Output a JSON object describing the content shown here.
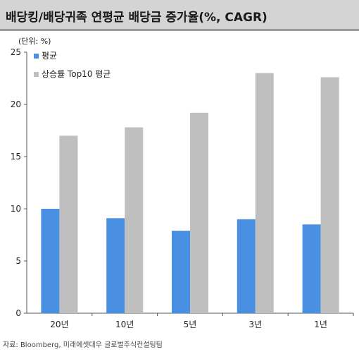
{
  "header": {
    "title": "배당킹/배당귀족 연평균 배당금 증가율(%, CAGR)"
  },
  "unit_label": "(단위: %)",
  "source": "자료: Bloomberg, 미래에셋대우 글로벌주식컨설팅팀",
  "colors": {
    "series_0": "#4a90e2",
    "series_1": "#bfbfbf",
    "axis": "#555555"
  },
  "chart_data": {
    "type": "bar",
    "title": "배당킹/배당귀족 연평균 배당금 증가율(%, CAGR)",
    "xlabel": "",
    "ylabel": "(단위: %)",
    "categories": [
      "20년",
      "10년",
      "5년",
      "3년",
      "1년"
    ],
    "series": [
      {
        "name": "평균",
        "values": [
          10.0,
          9.1,
          7.9,
          9.0,
          8.5
        ]
      },
      {
        "name": "상승률 Top10 평균",
        "values": [
          17.0,
          17.8,
          19.2,
          23.0,
          22.6
        ]
      }
    ],
    "ylim": [
      0,
      25
    ],
    "yticks": [
      0,
      5,
      10,
      15,
      20,
      25
    ],
    "grid": false,
    "legend": "top-left"
  }
}
